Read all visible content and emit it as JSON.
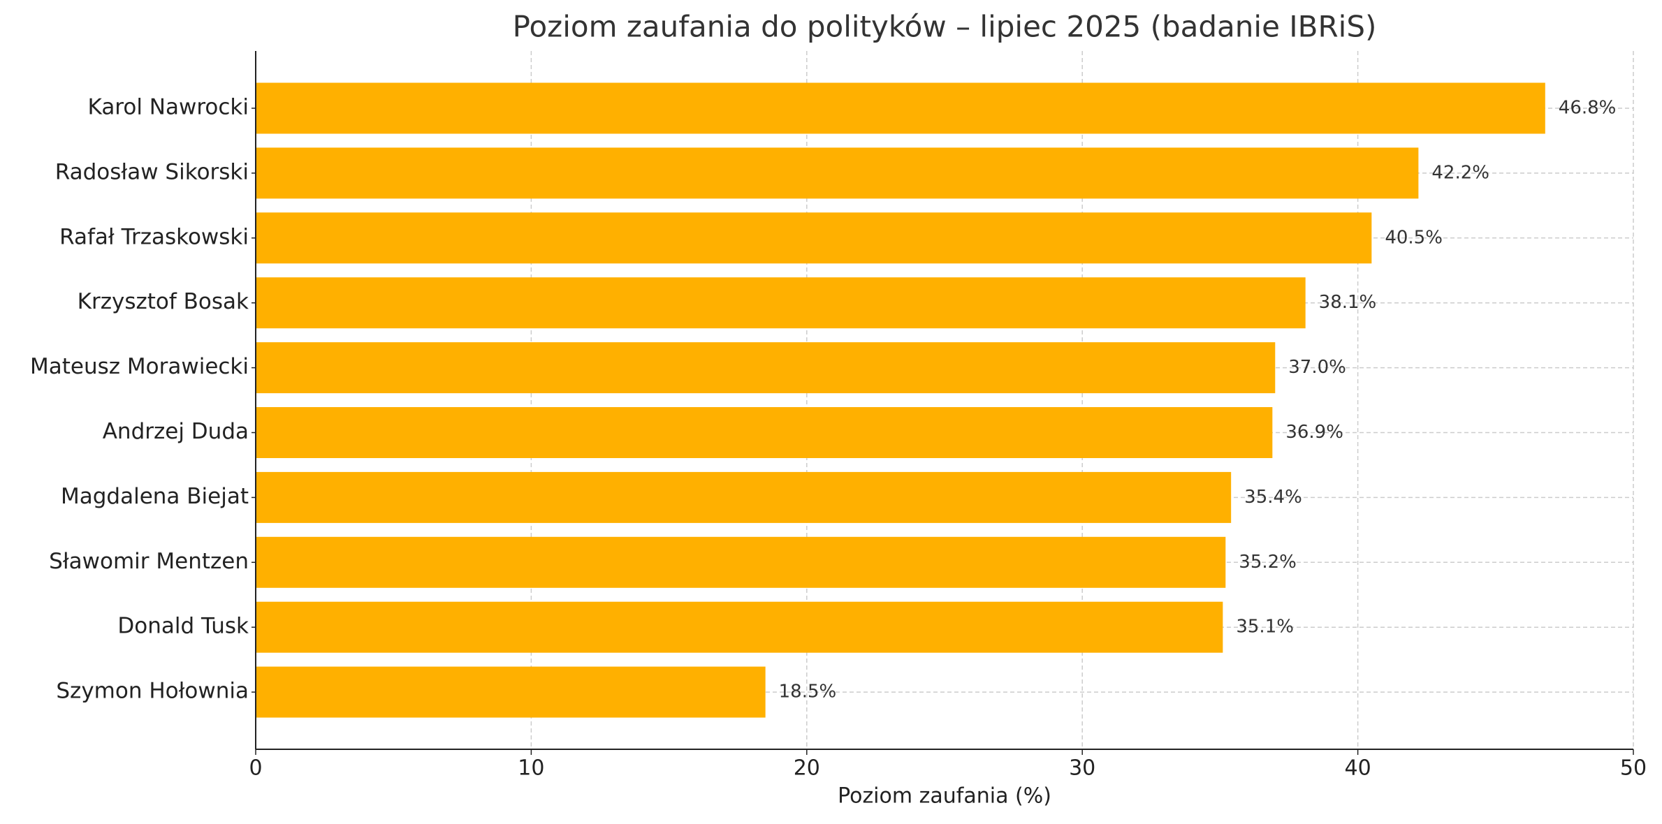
{
  "chart_data": {
    "type": "bar",
    "orientation": "horizontal",
    "title": "Poziom zaufania do polityków – lipiec 2025 (badanie IBRiS)",
    "x_label": "Poziom zaufania (%)",
    "categories": [
      "Karol Nawrocki",
      "Radosław Sikorski",
      "Rafał Trzaskowski",
      "Krzysztof Bosak",
      "Mateusz Morawiecki",
      "Andrzej Duda",
      "Magdalena Biejat",
      "Sławomir Mentzen",
      "Donald Tusk",
      "Szymon Hołownia"
    ],
    "values": [
      46.8,
      42.2,
      40.5,
      38.1,
      37.0,
      36.9,
      35.4,
      35.2,
      35.1,
      18.5
    ],
    "value_labels": [
      "46.8%",
      "42.2%",
      "40.5%",
      "38.1%",
      "37.0%",
      "36.9%",
      "35.4%",
      "35.2%",
      "35.1%",
      "18.5%"
    ],
    "color": "#ffb000",
    "xlim": [
      0,
      50
    ],
    "xticks": [
      0,
      10,
      20,
      30,
      40,
      50
    ],
    "grid": true
  }
}
